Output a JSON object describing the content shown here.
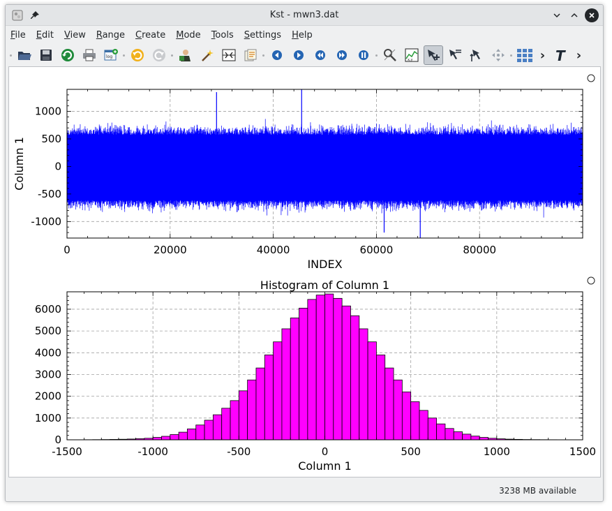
{
  "window": {
    "title": "Kst - mwn3.dat",
    "controls": [
      "minimize",
      "maximize",
      "close"
    ]
  },
  "menu": [
    {
      "key": "F",
      "rest": "ile"
    },
    {
      "key": "E",
      "rest": "dit"
    },
    {
      "key": "V",
      "rest": "iew"
    },
    {
      "key": "R",
      "rest": "ange"
    },
    {
      "key": "C",
      "rest": "reate"
    },
    {
      "key": "M",
      "rest": "ode"
    },
    {
      "key": "T",
      "rest": "ools"
    },
    {
      "key": "S",
      "rest": "ettings"
    },
    {
      "key": "H",
      "rest": "elp"
    }
  ],
  "toolbar": {
    "buttons": [
      "open-icon",
      "save-icon",
      "reload-icon",
      "print-icon",
      "export-log-icon",
      "undo-icon",
      "redo-icon",
      "data-manager-icon",
      "data-wizard-icon",
      "change-data-icon",
      "view-vectors-icon",
      "back-icon",
      "forward-icon",
      "rewind-icon",
      "fast-forward-icon",
      "pause-icon",
      "zoom-tool-icon",
      "scatter-plot-icon",
      "layout-mode-icon",
      "xy-zoom-icon",
      "y-zoom-icon",
      "move-icon",
      "layout-grid-icon",
      "text-tool-icon"
    ],
    "active": "layout-mode-icon",
    "overflow": "›"
  },
  "status": {
    "memory": "3238 MB available"
  },
  "chart_data": [
    {
      "type": "line",
      "title": "",
      "xlabel": "INDEX",
      "ylabel": "Column 1",
      "xlim": [
        0,
        100000
      ],
      "ylim": [
        -1300,
        1400
      ],
      "xticks": [
        0,
        20000,
        40000,
        60000,
        80000
      ],
      "yticks": [
        -1000,
        -500,
        0,
        500,
        1000
      ],
      "grid": true,
      "series": [
        {
          "color": "#0000ff",
          "description": "noise signal",
          "typical_range": [
            -750,
            700
          ],
          "extremes_x": [
            45500,
            68500,
            29000,
            61500
          ],
          "extremes_y": [
            1400,
            -1300,
            1350,
            -1200
          ]
        }
      ]
    },
    {
      "type": "bar",
      "title": "Histogram of Column 1",
      "xlabel": "Column 1",
      "ylabel": "",
      "xlim": [
        -1500,
        1500
      ],
      "ylim": [
        0,
        6800
      ],
      "xticks": [
        -1500,
        -1000,
        -500,
        0,
        500,
        1000,
        1500
      ],
      "yticks": [
        0,
        1000,
        2000,
        3000,
        4000,
        5000,
        6000
      ],
      "grid": true,
      "bin_width": 50,
      "bin_centers": [
        -1375,
        -1325,
        -1275,
        -1225,
        -1175,
        -1125,
        -1075,
        -1025,
        -975,
        -925,
        -875,
        -825,
        -775,
        -725,
        -675,
        -625,
        -575,
        -525,
        -475,
        -425,
        -375,
        -325,
        -275,
        -225,
        -175,
        -125,
        -75,
        -25,
        25,
        75,
        125,
        175,
        225,
        275,
        325,
        375,
        425,
        475,
        525,
        575,
        625,
        675,
        725,
        775,
        825,
        875,
        925,
        975,
        1025,
        1075,
        1125,
        1175,
        1225,
        1275,
        1325,
        1375
      ],
      "values": [
        5,
        8,
        12,
        18,
        25,
        35,
        50,
        70,
        110,
        160,
        240,
        350,
        500,
        680,
        900,
        1150,
        1450,
        1800,
        2250,
        2750,
        3300,
        3900,
        4500,
        5100,
        5600,
        6050,
        6450,
        6650,
        6700,
        6500,
        6150,
        5700,
        5100,
        4500,
        3900,
        3300,
        2750,
        2200,
        1750,
        1350,
        1000,
        730,
        520,
        370,
        260,
        170,
        110,
        70,
        45,
        30,
        20,
        13,
        9,
        6,
        4,
        3
      ],
      "bar_color": "#ff00ff"
    }
  ]
}
